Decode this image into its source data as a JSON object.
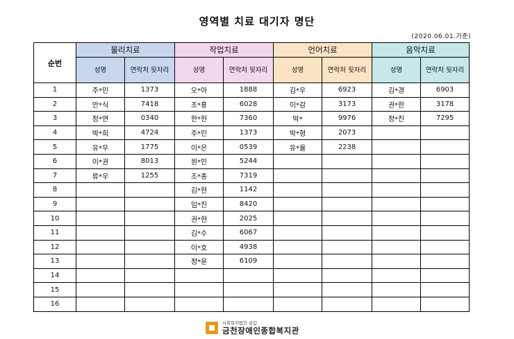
{
  "title": "영역별 치료 대기자 명단",
  "date_note": "(2020.06.01.기준)",
  "header": {
    "seq": "순번",
    "groups": [
      {
        "name": "물리치료",
        "color": "#c9d7ee"
      },
      {
        "name": "작업치료",
        "color": "#f3d7ec"
      },
      {
        "name": "언어치료",
        "color": "#fbe4c4"
      },
      {
        "name": "음악치료",
        "color": "#c6e8ea"
      }
    ],
    "col_name": "성명",
    "col_contact": "연락처 뒷자리"
  },
  "rows": [
    {
      "seq": "1",
      "cells": [
        [
          "주*민",
          "1373"
        ],
        [
          "오*아",
          "1888"
        ],
        [
          "김*우",
          "6923"
        ],
        [
          "김*경",
          "6903"
        ]
      ]
    },
    {
      "seq": "2",
      "cells": [
        [
          "안*식",
          "7418"
        ],
        [
          "조*홍",
          "6028"
        ],
        [
          "이*감",
          "3173"
        ],
        [
          "권*한",
          "3178"
        ]
      ]
    },
    {
      "seq": "3",
      "cells": [
        [
          "정*연",
          "0340"
        ],
        [
          "한*헌",
          "7360"
        ],
        [
          "박*",
          "9976"
        ],
        [
          "정*진",
          "7295"
        ]
      ]
    },
    {
      "seq": "4",
      "cells": [
        [
          "박*희",
          "4724"
        ],
        [
          "주*민",
          "1373"
        ],
        [
          "박*형",
          "2073"
        ],
        [
          "",
          ""
        ]
      ]
    },
    {
      "seq": "5",
      "cells": [
        [
          "유*우",
          "1775"
        ],
        [
          "이*은",
          "0539"
        ],
        [
          "유*율",
          "2238"
        ],
        [
          "",
          ""
        ]
      ]
    },
    {
      "seq": "6",
      "cells": [
        [
          "이*권",
          "8013"
        ],
        [
          "원*민",
          "5244"
        ],
        [
          "",
          ""
        ],
        [
          "",
          ""
        ]
      ]
    },
    {
      "seq": "7",
      "cells": [
        [
          "류*우",
          "1255"
        ],
        [
          "조*종",
          "7319"
        ],
        [
          "",
          ""
        ],
        [
          "",
          ""
        ]
      ]
    },
    {
      "seq": "8",
      "cells": [
        [
          "",
          ""
        ],
        [
          "김*현",
          "1142"
        ],
        [
          "",
          ""
        ],
        [
          "",
          ""
        ]
      ]
    },
    {
      "seq": "9",
      "cells": [
        [
          "",
          ""
        ],
        [
          "임*진",
          "8420"
        ],
        [
          "",
          ""
        ],
        [
          "",
          ""
        ]
      ]
    },
    {
      "seq": "10",
      "cells": [
        [
          "",
          ""
        ],
        [
          "권*현",
          "2025"
        ],
        [
          "",
          ""
        ],
        [
          "",
          ""
        ]
      ]
    },
    {
      "seq": "11",
      "cells": [
        [
          "",
          ""
        ],
        [
          "김*수",
          "6067"
        ],
        [
          "",
          ""
        ],
        [
          "",
          ""
        ]
      ]
    },
    {
      "seq": "12",
      "cells": [
        [
          "",
          ""
        ],
        [
          "이*호",
          "4938"
        ],
        [
          "",
          ""
        ],
        [
          "",
          ""
        ]
      ]
    },
    {
      "seq": "13",
      "cells": [
        [
          "",
          ""
        ],
        [
          "정*윤",
          "6109"
        ],
        [
          "",
          ""
        ],
        [
          "",
          ""
        ]
      ]
    },
    {
      "seq": "14",
      "cells": [
        [
          "",
          ""
        ],
        [
          "",
          ""
        ],
        [
          "",
          ""
        ],
        [
          "",
          ""
        ]
      ]
    },
    {
      "seq": "15",
      "cells": [
        [
          "",
          ""
        ],
        [
          "",
          ""
        ],
        [
          "",
          ""
        ],
        [
          "",
          ""
        ]
      ]
    },
    {
      "seq": "16",
      "cells": [
        [
          "",
          ""
        ],
        [
          "",
          ""
        ],
        [
          "",
          ""
        ],
        [
          "",
          ""
        ]
      ]
    }
  ],
  "footer": {
    "org_small": "사회복지법인 삼갑",
    "org_name": "금천장애인종합복지관"
  }
}
